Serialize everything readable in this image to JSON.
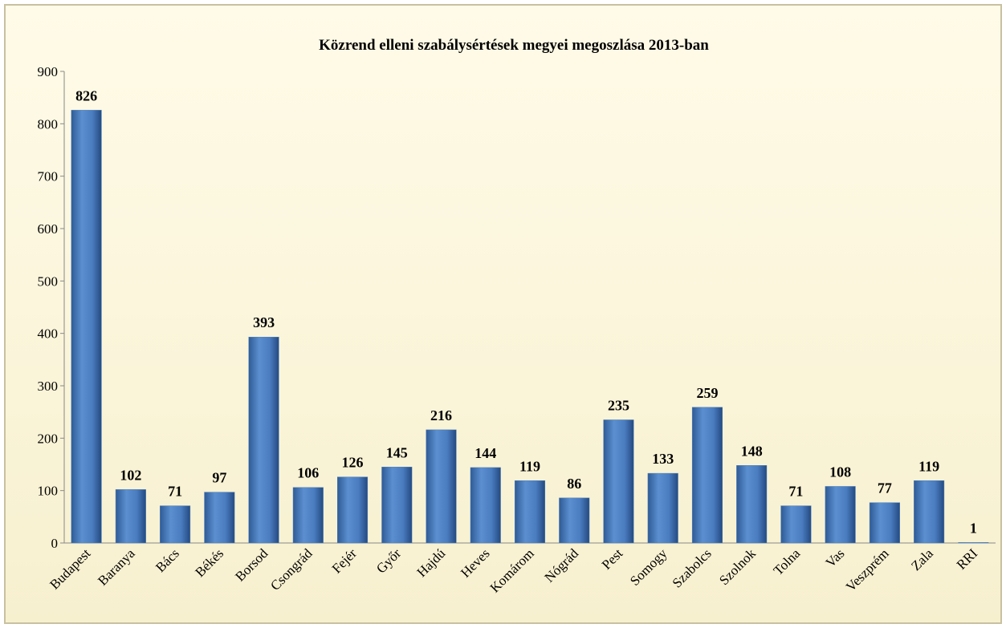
{
  "chart_data": {
    "type": "bar",
    "title": "Közrend elleni szabálysértések megyei megoszlása 2013-ban",
    "categories": [
      "Budapest",
      "Baranya",
      "Bács",
      "Békés",
      "Borsod",
      "Csongrád",
      "Fejér",
      "Győr",
      "Hajdú",
      "Heves",
      "Komárom",
      "Nógrád",
      "Pest",
      "Somogy",
      "Szabolcs",
      "Szolnok",
      "Tolna",
      "Vas",
      "Veszprém",
      "Zala",
      "RRI"
    ],
    "values": [
      826,
      102,
      71,
      97,
      393,
      106,
      126,
      145,
      216,
      144,
      119,
      86,
      235,
      133,
      259,
      148,
      71,
      108,
      77,
      119,
      1
    ],
    "color": "#4f81bd",
    "ylim": [
      0,
      900
    ],
    "yticks": [
      0,
      100,
      200,
      300,
      400,
      500,
      600,
      700,
      800,
      900
    ],
    "grid": false
  }
}
